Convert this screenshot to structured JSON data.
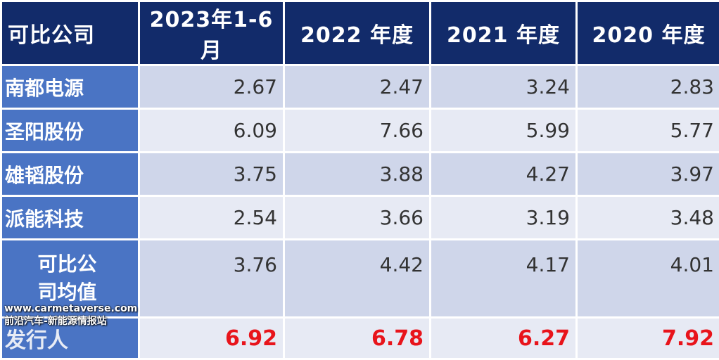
{
  "table": {
    "headers": [
      "可比公司",
      "2023年1-6月",
      "2022 年度",
      "2021 年度",
      "2020 年度"
    ],
    "rows": [
      {
        "label": "南都电源",
        "values": [
          "2.67",
          "2.47",
          "3.24",
          "2.83"
        ]
      },
      {
        "label": "圣阳股份",
        "values": [
          "6.09",
          "7.66",
          "5.99",
          "5.77"
        ]
      },
      {
        "label": "雄韬股份",
        "values": [
          "3.75",
          "3.88",
          "4.27",
          "3.97"
        ]
      },
      {
        "label": "派能科技",
        "values": [
          "2.54",
          "3.66",
          "3.19",
          "3.48"
        ]
      }
    ],
    "average": {
      "label_line1": "可比公",
      "label_line2": "司均值",
      "values": [
        "3.76",
        "4.42",
        "4.17",
        "4.01"
      ]
    },
    "issuer": {
      "label": "发行人",
      "values": [
        "6.92",
        "6.78",
        "6.27",
        "7.92"
      ]
    }
  },
  "watermark": {
    "line1": "www.carmetaverse.com",
    "line2": "前沿汽车-新能源情报站"
  },
  "colors": {
    "header_bg": "#122b6a",
    "label_bg": "#4a74c4",
    "band_dark": "#cfd6ea",
    "band_light": "#e7eaf4",
    "issuer_text": "#e8141b"
  }
}
